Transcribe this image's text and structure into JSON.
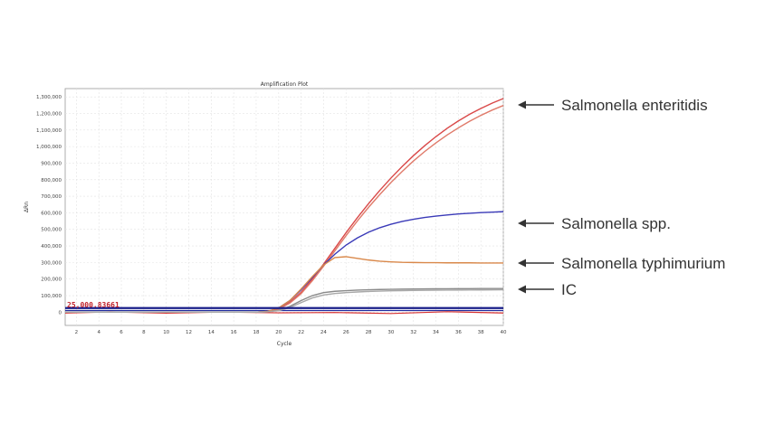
{
  "chart_data": {
    "type": "line",
    "title": "Amplification Plot",
    "xlabel": "Cycle",
    "ylabel": "ΔRn",
    "xlim": [
      1,
      40
    ],
    "ylim": [
      -80000,
      1350000
    ],
    "x_ticks": [
      2,
      4,
      6,
      8,
      10,
      12,
      14,
      16,
      18,
      20,
      22,
      24,
      26,
      28,
      30,
      32,
      34,
      36,
      38,
      40
    ],
    "y_ticks": [
      {
        "value": 1300000,
        "label": "1,300,000"
      },
      {
        "value": 1200000,
        "label": "1,200,000"
      },
      {
        "value": 1100000,
        "label": "1,100,000"
      },
      {
        "value": 1000000,
        "label": "1,000,000"
      },
      {
        "value": 900000,
        "label": "900,000"
      },
      {
        "value": 800000,
        "label": "800,000"
      },
      {
        "value": 700000,
        "label": "700,000"
      },
      {
        "value": 600000,
        "label": "600,000"
      },
      {
        "value": 500000,
        "label": "500,000"
      },
      {
        "value": 400000,
        "label": "400,000"
      },
      {
        "value": 300000,
        "label": "300,000"
      },
      {
        "value": 200000,
        "label": "200,000"
      },
      {
        "value": 100000,
        "label": "100,000"
      },
      {
        "value": 0,
        "label": "0"
      }
    ],
    "grid": true,
    "threshold": {
      "value": 25000.83661,
      "label": "25,000.83661",
      "color": "#c0202a"
    },
    "baseline_series": [
      {
        "color": "#1f2a9e",
        "x": [
          1,
          40
        ],
        "y": [
          10000,
          10000
        ]
      },
      {
        "color": "#d63030",
        "x": [
          1,
          5,
          10,
          15,
          20,
          25,
          30,
          35,
          40
        ],
        "y": [
          -5000,
          2000,
          -6000,
          1000,
          -4000,
          -2000,
          -8000,
          3000,
          -5000
        ]
      }
    ],
    "series": [
      {
        "name": "Salmonella enteritidis",
        "color": "#d94848",
        "x": [
          1,
          18,
          19,
          20,
          21,
          22,
          23,
          24,
          25,
          26,
          27,
          28,
          29,
          30,
          31,
          32,
          33,
          34,
          35,
          36,
          37,
          38,
          39,
          40
        ],
        "y": [
          0,
          0,
          5000,
          20000,
          60000,
          120000,
          200000,
          290000,
          385000,
          480000,
          570000,
          655000,
          735000,
          810000,
          880000,
          945000,
          1005000,
          1060000,
          1110000,
          1155000,
          1195000,
          1230000,
          1262000,
          1290000
        ]
      },
      {
        "name": "Salmonella enteritidis",
        "color": "#e07a6a",
        "x": [
          1,
          18,
          19,
          20,
          21,
          22,
          23,
          24,
          25,
          26,
          27,
          28,
          29,
          30,
          31,
          32,
          33,
          34,
          35,
          36,
          37,
          38,
          39,
          40
        ],
        "y": [
          0,
          0,
          4000,
          18000,
          55000,
          112000,
          190000,
          278000,
          370000,
          462000,
          550000,
          633000,
          710000,
          783000,
          850000,
          913000,
          970000,
          1022000,
          1070000,
          1113000,
          1153000,
          1188000,
          1220000,
          1248000
        ]
      },
      {
        "name": "Salmonella spp.",
        "color": "#3a3ab8",
        "x": [
          1,
          18,
          19,
          20,
          21,
          22,
          23,
          24,
          25,
          26,
          27,
          28,
          29,
          30,
          31,
          32,
          33,
          34,
          35,
          36,
          37,
          38,
          39,
          40
        ],
        "y": [
          0,
          0,
          5000,
          25000,
          70000,
          135000,
          210000,
          285000,
          350000,
          405000,
          448000,
          483000,
          510000,
          531000,
          548000,
          561000,
          572000,
          580000,
          587000,
          593000,
          597000,
          601000,
          604000,
          607000
        ]
      },
      {
        "name": "Salmonella typhimurium",
        "color": "#d9884a",
        "x": [
          1,
          18,
          19,
          20,
          21,
          22,
          23,
          24,
          25,
          26,
          27,
          28,
          29,
          30,
          31,
          32,
          33,
          34,
          35,
          36,
          37,
          38,
          39,
          40
        ],
        "y": [
          0,
          0,
          5000,
          25000,
          70000,
          140000,
          215000,
          285000,
          330000,
          335000,
          325000,
          315000,
          308000,
          304000,
          301000,
          300000,
          299000,
          299000,
          298000,
          298000,
          298000,
          297000,
          297000,
          297000
        ]
      },
      {
        "name": "IC",
        "color": "#8a8a8a",
        "x": [
          1,
          18,
          19,
          20,
          21,
          22,
          23,
          24,
          25,
          26,
          27,
          28,
          29,
          30,
          31,
          32,
          33,
          34,
          35,
          36,
          37,
          38,
          39,
          40
        ],
        "y": [
          0,
          0,
          3000,
          12000,
          35000,
          70000,
          100000,
          118000,
          126000,
          130000,
          133000,
          135000,
          137000,
          138000,
          139000,
          140000,
          140500,
          141000,
          141500,
          142000,
          142300,
          142600,
          142800,
          143000
        ]
      },
      {
        "name": "IC",
        "color": "#a8a8a8",
        "x": [
          1,
          18,
          19,
          20,
          21,
          22,
          23,
          24,
          25,
          26,
          27,
          28,
          29,
          30,
          31,
          32,
          33,
          34,
          35,
          36,
          37,
          38,
          39,
          40
        ],
        "y": [
          0,
          0,
          2000,
          9000,
          28000,
          58000,
          86000,
          104000,
          113000,
          118000,
          122000,
          125000,
          127000,
          129000,
          130000,
          131000,
          132000,
          132500,
          133000,
          133500,
          134000,
          134300,
          134600,
          135000
        ]
      }
    ],
    "callouts": [
      {
        "text": "Salmonella enteritidis",
        "target_value": 1290000
      },
      {
        "text": "Salmonella spp.",
        "target_value": 607000
      },
      {
        "text": "Salmonella typhimurium",
        "target_value": 297000
      },
      {
        "text": "IC",
        "target_value": 143000
      }
    ]
  }
}
